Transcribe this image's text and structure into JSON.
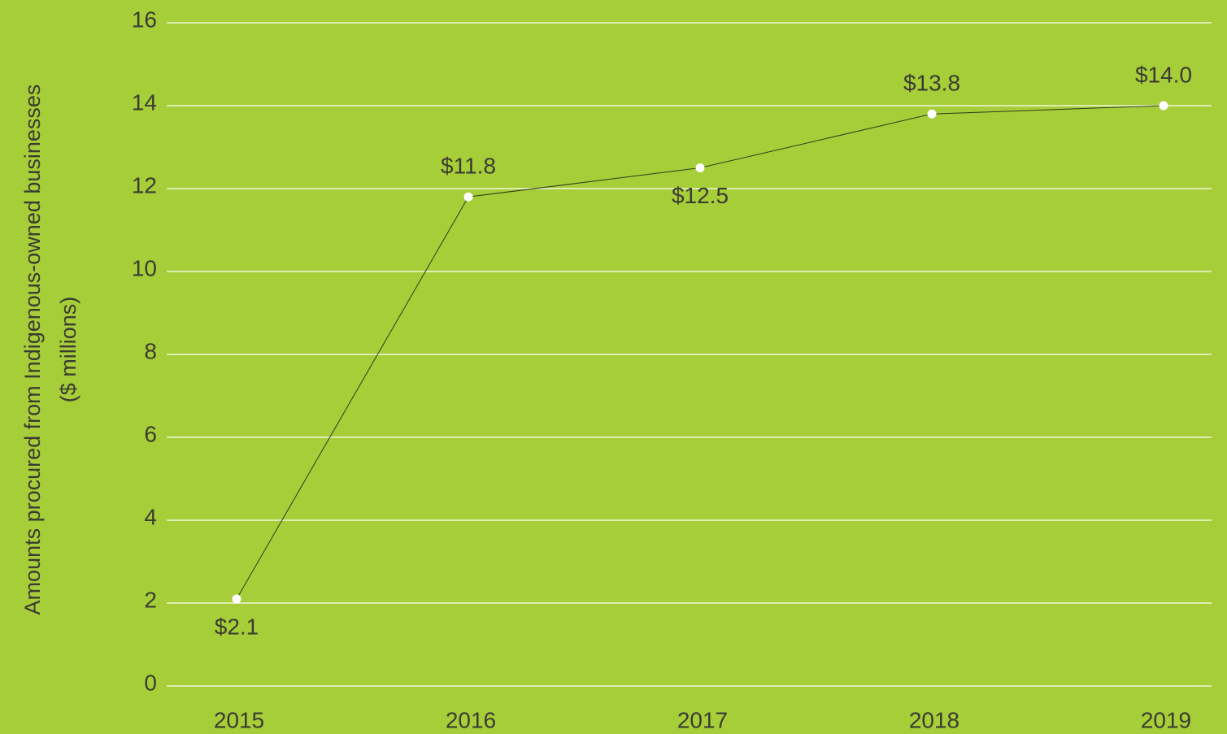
{
  "chart_data": {
    "type": "line",
    "y_label": [
      "Amounts procured from Indigenous-owned businesses",
      "($ millions)"
    ],
    "categories": [
      "2015",
      "2016",
      "2017",
      "2018",
      "2019"
    ],
    "series": [
      {
        "name": null,
        "color": "#2e3a1a",
        "marker_color": "#ffffff",
        "values": [
          2.1,
          11.8,
          12.5,
          13.8,
          14.0
        ],
        "value_labels": [
          "$2.1",
          "$11.8",
          "$12.5",
          "$13.8",
          "$14.0"
        ]
      }
    ],
    "ylim": [
      0,
      16
    ],
    "yticks": [
      0,
      2,
      4,
      6,
      8,
      10,
      12,
      14,
      16
    ],
    "grid": true
  }
}
